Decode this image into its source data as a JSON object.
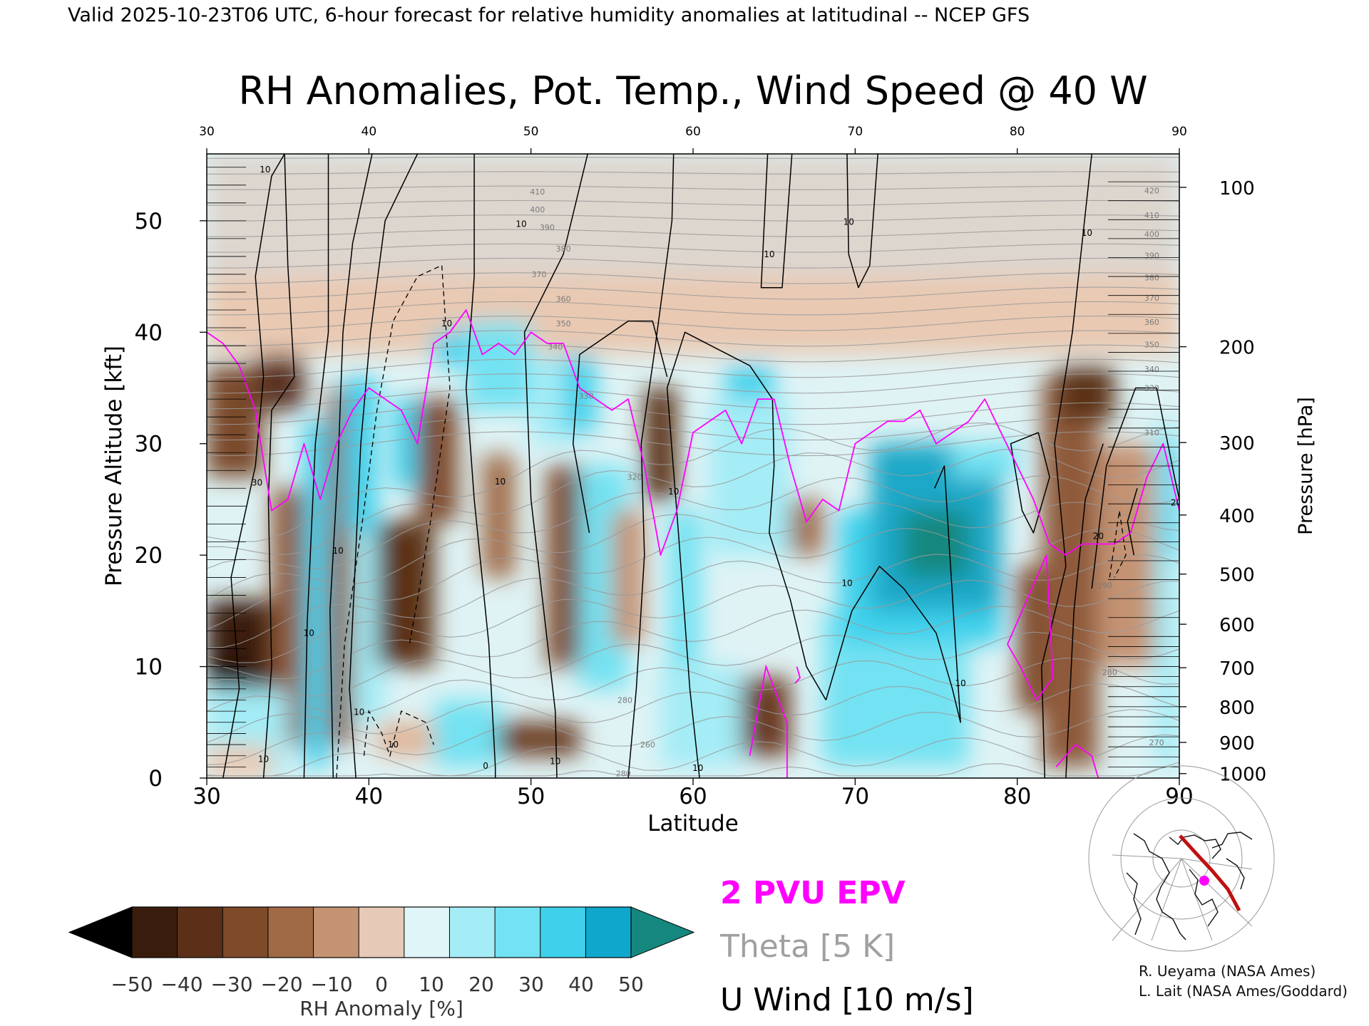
{
  "header": {
    "valid_line": "Valid 2025-10-23T06 UTC, 6-hour forecast for relative humidity anomalies at latitudinal -- NCEP GFS"
  },
  "chart_data": {
    "type": "heatmap",
    "title": "RH Anomalies, Pot. Temp., Wind Speed @ 40 W",
    "xlabel": "Latitude",
    "ylabel_left": "Pressure Altitude [kft]",
    "ylabel_right": "Pressure [hPa]",
    "xlim": [
      30,
      90
    ],
    "ylim": [
      0,
      56
    ],
    "x_ticks": [
      30,
      40,
      50,
      60,
      70,
      80,
      90
    ],
    "y_ticks": [
      0,
      10,
      20,
      30,
      40,
      50
    ],
    "pressure_ticks": [
      {
        "label": "100",
        "alt": 53.0
      },
      {
        "label": "200",
        "alt": 38.7
      },
      {
        "label": "300",
        "alt": 30.1
      },
      {
        "label": "400",
        "alt": 23.6
      },
      {
        "label": "500",
        "alt": 18.3
      },
      {
        "label": "600",
        "alt": 13.8
      },
      {
        "label": "700",
        "alt": 9.9
      },
      {
        "label": "800",
        "alt": 6.4
      },
      {
        "label": "900",
        "alt": 3.2
      },
      {
        "label": "1000",
        "alt": 0.4
      }
    ],
    "colorbar": {
      "label": "RH Anomaly [%]",
      "ticks": [
        "−50",
        "−40",
        "−30",
        "−20",
        "−10",
        "0",
        "10",
        "20",
        "30",
        "40",
        "50"
      ],
      "colors": [
        "#3a1c0c",
        "#5c3018",
        "#7e4a2a",
        "#a06a46",
        "#c49373",
        "#e6c9b6",
        "#dff5f8",
        "#a4ecf6",
        "#73e2f2",
        "#3fd1ec",
        "#0fa8cc"
      ],
      "under_color": "#000000",
      "over_color": "#16877e"
    },
    "theta_labels": [
      {
        "text": "420",
        "x": 88.3,
        "alt": 52.7
      },
      {
        "text": "410",
        "x": 88.3,
        "alt": 50.5
      },
      {
        "text": "400",
        "x": 88.3,
        "alt": 48.8
      },
      {
        "text": "390",
        "x": 88.3,
        "alt": 46.9
      },
      {
        "text": "380",
        "x": 88.3,
        "alt": 44.9
      },
      {
        "text": "370",
        "x": 88.3,
        "alt": 43.1
      },
      {
        "text": "360",
        "x": 88.3,
        "alt": 40.9
      },
      {
        "text": "350",
        "x": 88.3,
        "alt": 38.9
      },
      {
        "text": "340",
        "x": 88.3,
        "alt": 36.7
      },
      {
        "text": "330",
        "x": 88.3,
        "alt": 35.0
      },
      {
        "text": "310",
        "x": 88.3,
        "alt": 31.0
      },
      {
        "text": "410",
        "x": 50.4,
        "alt": 52.6
      },
      {
        "text": "400",
        "x": 50.4,
        "alt": 51.0
      },
      {
        "text": "390",
        "x": 51.0,
        "alt": 49.4
      },
      {
        "text": "380",
        "x": 52.0,
        "alt": 47.5
      },
      {
        "text": "370",
        "x": 50.5,
        "alt": 45.2
      },
      {
        "text": "360",
        "x": 52.0,
        "alt": 43.0
      },
      {
        "text": "350",
        "x": 52.0,
        "alt": 40.8
      },
      {
        "text": "340",
        "x": 51.5,
        "alt": 38.7
      },
      {
        "text": "330",
        "x": 53.4,
        "alt": 34.3
      },
      {
        "text": "320",
        "x": 56.4,
        "alt": 27.0
      },
      {
        "text": "290",
        "x": 85.4,
        "alt": 17.3
      },
      {
        "text": "280",
        "x": 85.7,
        "alt": 9.5
      },
      {
        "text": "270",
        "x": 88.6,
        "alt": 3.2
      },
      {
        "text": "260",
        "x": 57.2,
        "alt": 3.0
      },
      {
        "text": "280",
        "x": 55.7,
        "alt": 0.4
      },
      {
        "text": "280",
        "x": 55.8,
        "alt": 7.0
      }
    ],
    "wind_labels": [
      {
        "text": "10",
        "x": 33.6,
        "alt": 54.6
      },
      {
        "text": "30",
        "x": 33.1,
        "alt": 26.5
      },
      {
        "text": "10",
        "x": 36.3,
        "alt": 13.0
      },
      {
        "text": "10",
        "x": 38.1,
        "alt": 20.4
      },
      {
        "text": "10",
        "x": 39.4,
        "alt": 5.9
      },
      {
        "text": "10",
        "x": 41.5,
        "alt": 3.0
      },
      {
        "text": "10",
        "x": 33.5,
        "alt": 1.7
      },
      {
        "text": "10",
        "x": 44.8,
        "alt": 40.8
      },
      {
        "text": "10",
        "x": 49.4,
        "alt": 49.7
      },
      {
        "text": "10",
        "x": 48.1,
        "alt": 26.6
      },
      {
        "text": "0",
        "x": 47.2,
        "alt": 1.1
      },
      {
        "text": "10",
        "x": 51.5,
        "alt": 1.5
      },
      {
        "text": "10",
        "x": 60.3,
        "alt": 0.9
      },
      {
        "text": "10",
        "x": 58.8,
        "alt": 25.7
      },
      {
        "text": "10",
        "x": 64.7,
        "alt": 47.0
      },
      {
        "text": "10",
        "x": 69.6,
        "alt": 49.9
      },
      {
        "text": "10",
        "x": 69.5,
        "alt": 17.5
      },
      {
        "text": "10",
        "x": 76.5,
        "alt": 8.5
      },
      {
        "text": "10",
        "x": 84.3,
        "alt": 48.9
      },
      {
        "text": "20",
        "x": 85.0,
        "alt": 21.7
      },
      {
        "text": "20",
        "x": 89.8,
        "alt": 24.7
      }
    ],
    "legend": [
      {
        "name": "2 PVU EPV",
        "color": "#ff00ff"
      },
      {
        "name": "Theta [5 K]",
        "color": "#a0a0a0"
      },
      {
        "name": "U Wind [10 m/s]",
        "color": "#000000"
      }
    ],
    "epv_2pvu_x": [
      30,
      31,
      32,
      33,
      34,
      35,
      36,
      37,
      38,
      39,
      40,
      41,
      42,
      43,
      44,
      45,
      46,
      47,
      48,
      49,
      50,
      51,
      52,
      53,
      54,
      55,
      56,
      57,
      58,
      59,
      60,
      61,
      62,
      63,
      64,
      65,
      66,
      67,
      68,
      69,
      70,
      71,
      72,
      73,
      74,
      75,
      76,
      77,
      78,
      79,
      80,
      81,
      82,
      83,
      84,
      85,
      86,
      87,
      88,
      89,
      90
    ],
    "epv_2pvu_alt": [
      40,
      39,
      37,
      33,
      24,
      25,
      30,
      25,
      30,
      33,
      35,
      34,
      33,
      30,
      39,
      40,
      42,
      38,
      39,
      38,
      40,
      39,
      39,
      35,
      34,
      33,
      34,
      28,
      20,
      24,
      31,
      32,
      33,
      30,
      34,
      34,
      28,
      23,
      25,
      24,
      30,
      31,
      32,
      32,
      33,
      30,
      31,
      32,
      34,
      31,
      28,
      25,
      21,
      20,
      21,
      21,
      21,
      22,
      27,
      30,
      24
    ]
  },
  "attribution": {
    "line1": "R. Ueyama (NASA Ames)",
    "line2": "L. Lait (NASA Ames/Goddard)"
  },
  "inset_map": {
    "track_color": "#c01010",
    "marker_color": "#ff00ff"
  }
}
